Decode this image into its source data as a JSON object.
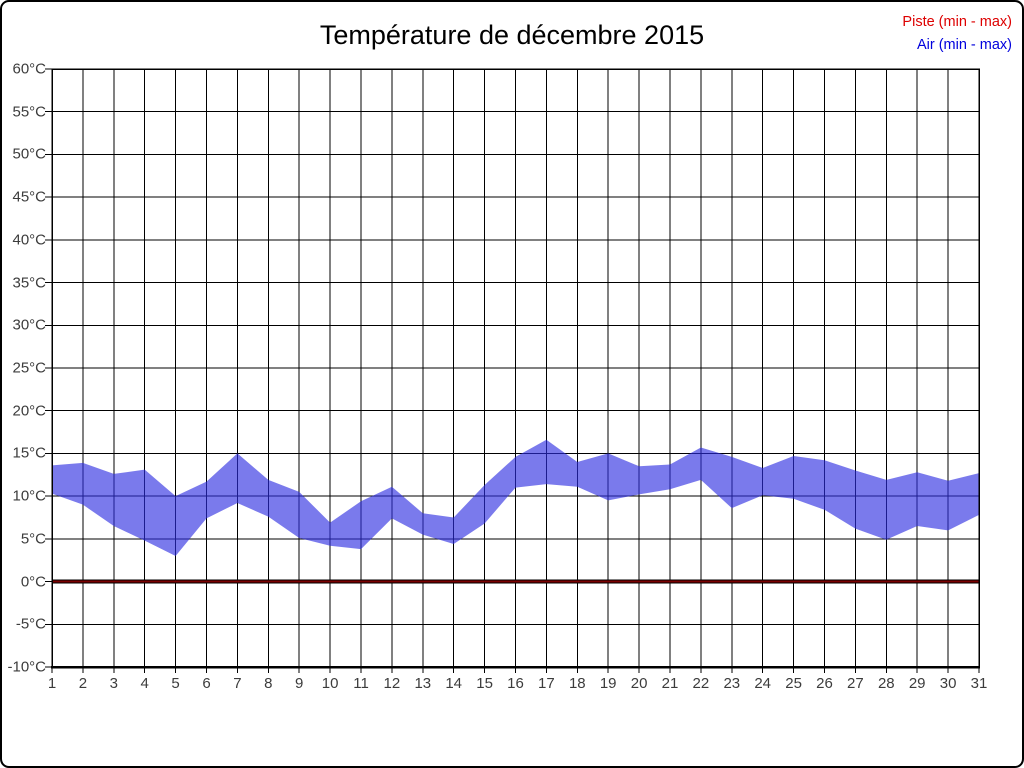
{
  "chart_data": {
    "type": "area",
    "title": "Température de décembre 2015",
    "legend_position": "top-right",
    "grid": true,
    "legend": [
      {
        "label": "Piste (min - max)",
        "color": "#dd0000"
      },
      {
        "label": "Air (min - max)",
        "color": "#0000dd"
      }
    ],
    "x": [
      1,
      2,
      3,
      4,
      5,
      6,
      7,
      8,
      9,
      10,
      11,
      12,
      13,
      14,
      15,
      16,
      17,
      18,
      19,
      20,
      21,
      22,
      23,
      24,
      25,
      26,
      27,
      28,
      29,
      30,
      31
    ],
    "ylim": [
      -10,
      60
    ],
    "ytick_step": 5,
    "ytick_suffix": "°C",
    "yticks": [
      60,
      55,
      50,
      45,
      40,
      35,
      30,
      25,
      20,
      15,
      10,
      5,
      0,
      -5,
      -10
    ],
    "series": [
      {
        "name": "Piste (min - max)",
        "style": "flat-line",
        "line_color": "#7a0000",
        "min": [
          0,
          0,
          0,
          0,
          0,
          0,
          0,
          0,
          0,
          0,
          0,
          0,
          0,
          0,
          0,
          0,
          0,
          0,
          0,
          0,
          0,
          0,
          0,
          0,
          0,
          0,
          0,
          0,
          0,
          0,
          0
        ],
        "max": [
          0,
          0,
          0,
          0,
          0,
          0,
          0,
          0,
          0,
          0,
          0,
          0,
          0,
          0,
          0,
          0,
          0,
          0,
          0,
          0,
          0,
          0,
          0,
          0,
          0,
          0,
          0,
          0,
          0,
          0,
          0
        ]
      },
      {
        "name": "Air (min - max)",
        "style": "band",
        "fill_color": "rgba(45,45,225,0.63)",
        "apparent_fill": "#7474ec",
        "min": [
          10.3,
          9.0,
          6.5,
          4.8,
          3.0,
          7.4,
          9.2,
          7.6,
          5.1,
          4.2,
          3.8,
          7.4,
          5.5,
          4.4,
          6.8,
          11.0,
          11.4,
          11.1,
          9.5,
          10.2,
          10.8,
          11.9,
          8.6,
          10.1,
          9.7,
          8.4,
          6.2,
          4.9,
          6.5,
          6.0,
          7.8
        ],
        "max": [
          13.6,
          13.9,
          12.6,
          13.1,
          10.0,
          11.7,
          15.0,
          11.9,
          10.5,
          6.9,
          9.4,
          11.1,
          8.0,
          7.5,
          11.3,
          14.6,
          16.6,
          14.0,
          15.0,
          13.5,
          13.7,
          15.7,
          14.6,
          13.3,
          14.7,
          14.2,
          13.0,
          11.9,
          12.8,
          11.8,
          12.7
        ]
      }
    ]
  }
}
